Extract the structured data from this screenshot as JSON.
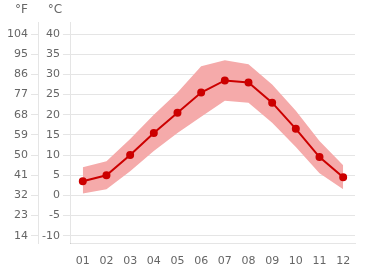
{
  "chart_data": {
    "type": "line",
    "categories": [
      "01",
      "02",
      "03",
      "04",
      "05",
      "06",
      "07",
      "08",
      "09",
      "10",
      "11",
      "12"
    ],
    "series": [
      {
        "color": "#cc0000",
        "marker": "circle",
        "values": [
          3.5,
          5.0,
          10.0,
          15.5,
          20.5,
          25.5,
          28.5,
          28.0,
          23.0,
          16.5,
          9.5,
          4.5
        ]
      }
    ],
    "band": {
      "low": [
        0.5,
        1.5,
        6.0,
        11.0,
        15.5,
        19.5,
        23.5,
        23.0,
        18.0,
        12.0,
        5.5,
        1.5
      ],
      "high": [
        7.0,
        8.5,
        14.0,
        20.0,
        25.5,
        32.0,
        33.5,
        32.5,
        27.5,
        21.0,
        13.5,
        7.5
      ],
      "color": "#f5aaaa"
    },
    "ylim": [
      -12,
      43
    ],
    "yticks": [
      -10,
      -5,
      0,
      5,
      10,
      15,
      20,
      25,
      30,
      35,
      40
    ],
    "y2lim": [
      10.4,
      109.4
    ],
    "y2ticks": [
      14,
      23,
      32,
      41,
      50,
      59,
      68,
      77,
      86,
      95,
      104
    ],
    "ylabel": "°C",
    "y2label": "°F",
    "grid": true
  }
}
